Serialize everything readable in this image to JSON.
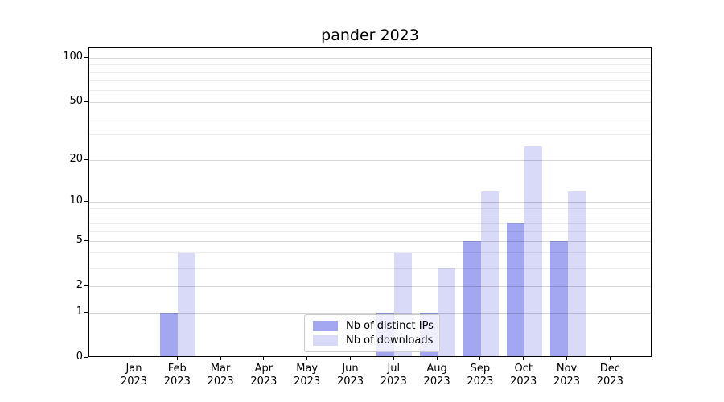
{
  "chart_data": {
    "type": "bar",
    "title": "pander 2023",
    "xlabel": "",
    "ylabel": "",
    "categories": [
      "Jan",
      "Feb",
      "Mar",
      "Apr",
      "May",
      "Jun",
      "Jul",
      "Aug",
      "Sep",
      "Oct",
      "Nov",
      "Dec"
    ],
    "x_year_label": "2023",
    "series": [
      {
        "name": "Nb of distinct IPs",
        "color": "#a3a7f2",
        "values": [
          0,
          1,
          0,
          0,
          0,
          0,
          1,
          1,
          5,
          7,
          5,
          0
        ]
      },
      {
        "name": "Nb of downloads",
        "color": "#d8daf8",
        "values": [
          0,
          4,
          0,
          0,
          0,
          0,
          4,
          3,
          12,
          25,
          12,
          0
        ]
      }
    ],
    "y_scale": "log10(1+v)",
    "y_ticks": [
      0,
      1,
      2,
      5,
      10,
      20,
      50,
      100
    ],
    "y_minor_ticks": [
      3,
      4,
      6,
      7,
      8,
      9,
      30,
      40,
      60,
      70,
      80,
      90
    ],
    "ylim": [
      0,
      117
    ],
    "grid": "horizontal, drawn over bars",
    "legend_position": "inside lower center",
    "colors": {
      "axis": "#000000",
      "background": "#ffffff",
      "grid_major": "#d6d6d6",
      "grid_minor": "#ededed",
      "legend_border": "#cccccc"
    }
  }
}
